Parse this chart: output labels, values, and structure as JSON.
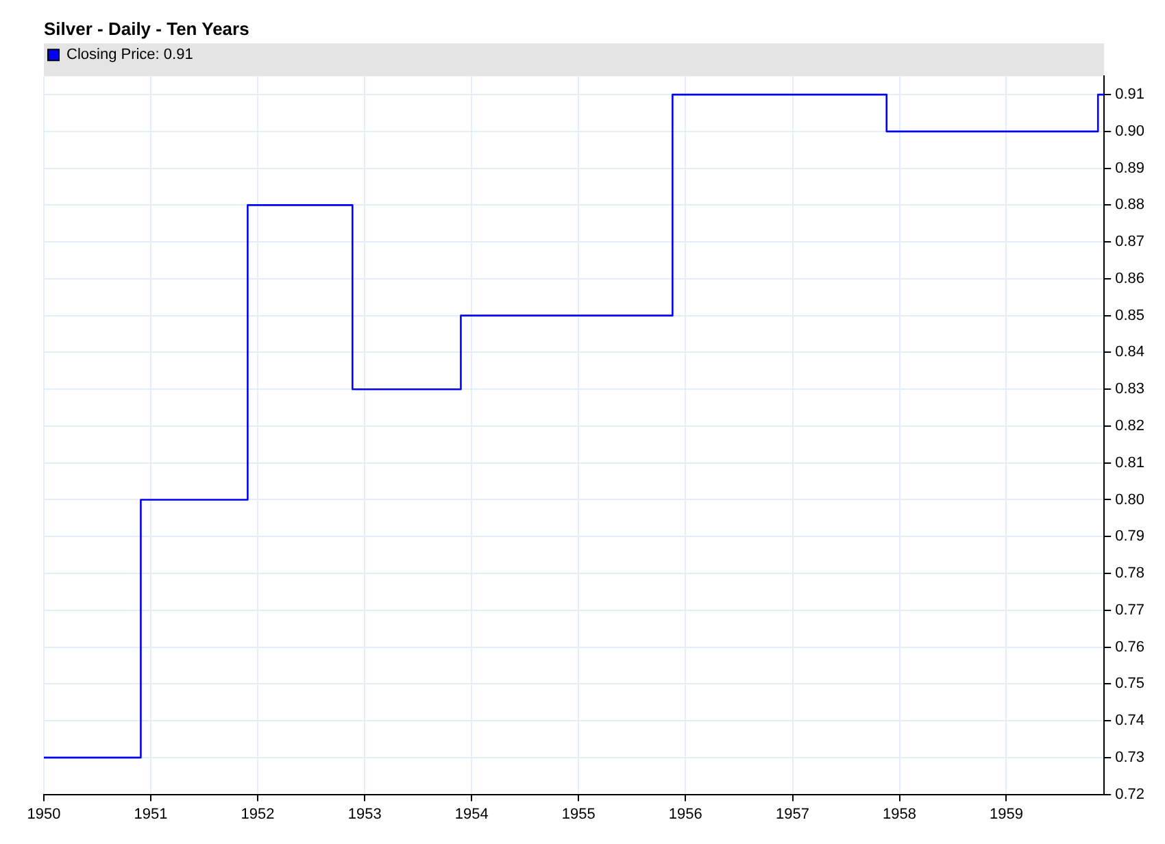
{
  "chart_data": {
    "type": "step",
    "title": "Silver - Daily - Ten Years",
    "x": [
      "1950-01-01",
      "1950-11-28",
      "1951-11-28",
      "1952-11-20",
      "1953-11-25",
      "1955-11-18",
      "1957-11-18",
      "1959-11-10",
      "1959-12-01"
    ],
    "series": [
      {
        "name": "Closing Price: 0.91",
        "color": "#0000ff",
        "values": [
          0.73,
          0.8,
          0.88,
          0.83,
          0.85,
          0.91,
          0.9,
          0.91,
          0.91
        ]
      }
    ],
    "xlim": [
      "1950",
      "1959-12"
    ],
    "xticks": [
      "1950",
      "1951",
      "1952",
      "1953",
      "1954",
      "1955",
      "1956",
      "1957",
      "1958",
      "1959"
    ],
    "ylim": [
      0.72,
      0.915
    ],
    "yticks": [
      0.72,
      0.73,
      0.74,
      0.75,
      0.76,
      0.77,
      0.78,
      0.79,
      {
        "value": 0.8,
        "label": "0.80"
      },
      0.81,
      0.82,
      0.83,
      0.84,
      0.85,
      0.86,
      0.87,
      0.88,
      0.89,
      {
        "value": 0.9,
        "label": "0.90"
      },
      0.91
    ],
    "grid": true,
    "legend": "top left",
    "line_style": "solid",
    "marker": "none"
  }
}
